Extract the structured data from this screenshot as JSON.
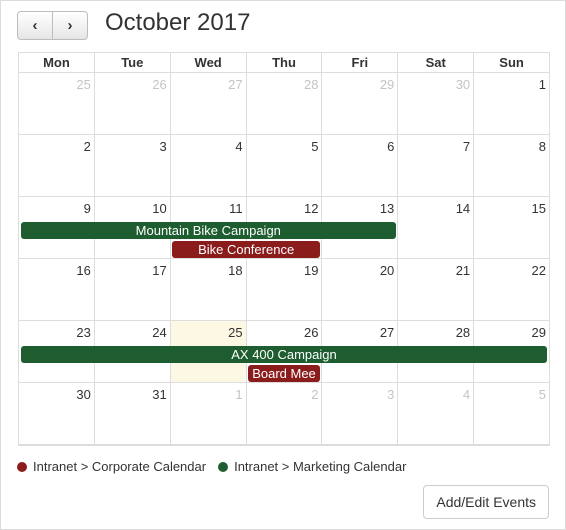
{
  "header": {
    "prev_label": "‹",
    "next_label": "›",
    "title": "October 2017"
  },
  "weekdays": [
    "Mon",
    "Tue",
    "Wed",
    "Thu",
    "Fri",
    "Sat",
    "Sun"
  ],
  "weeks": [
    [
      {
        "n": "25",
        "other": true
      },
      {
        "n": "26",
        "other": true
      },
      {
        "n": "27",
        "other": true
      },
      {
        "n": "28",
        "other": true
      },
      {
        "n": "29",
        "other": true
      },
      {
        "n": "30",
        "other": true
      },
      {
        "n": "1"
      }
    ],
    [
      {
        "n": "2"
      },
      {
        "n": "3"
      },
      {
        "n": "4"
      },
      {
        "n": "5"
      },
      {
        "n": "6"
      },
      {
        "n": "7"
      },
      {
        "n": "8"
      }
    ],
    [
      {
        "n": "9"
      },
      {
        "n": "10"
      },
      {
        "n": "11"
      },
      {
        "n": "12"
      },
      {
        "n": "13"
      },
      {
        "n": "14"
      },
      {
        "n": "15"
      }
    ],
    [
      {
        "n": "16"
      },
      {
        "n": "17"
      },
      {
        "n": "18"
      },
      {
        "n": "19"
      },
      {
        "n": "20"
      },
      {
        "n": "21"
      },
      {
        "n": "22"
      }
    ],
    [
      {
        "n": "23"
      },
      {
        "n": "24"
      },
      {
        "n": "25",
        "today": true
      },
      {
        "n": "26"
      },
      {
        "n": "27"
      },
      {
        "n": "28"
      },
      {
        "n": "29"
      }
    ],
    [
      {
        "n": "30"
      },
      {
        "n": "31"
      },
      {
        "n": "1",
        "other": true
      },
      {
        "n": "2",
        "other": true
      },
      {
        "n": "3",
        "other": true
      },
      {
        "n": "4",
        "other": true
      },
      {
        "n": "5",
        "other": true
      }
    ]
  ],
  "events": [
    {
      "title": "Mountain Bike Campaign",
      "week": 2,
      "start_col": 0,
      "span": 5,
      "row": 0,
      "calendar": "marketing"
    },
    {
      "title": "Bike Conference",
      "week": 2,
      "start_col": 2,
      "span": 2,
      "row": 1,
      "calendar": "corporate"
    },
    {
      "title": "AX 400 Campaign",
      "week": 4,
      "start_col": 0,
      "span": 7,
      "row": 0,
      "calendar": "marketing"
    },
    {
      "title": "Board Mee",
      "week": 4,
      "start_col": 3,
      "span": 1,
      "row": 1,
      "calendar": "corporate"
    }
  ],
  "calendars": {
    "corporate": {
      "label": "Intranet > Corporate Calendar",
      "color": "#8b1c1c"
    },
    "marketing": {
      "label": "Intranet > Marketing Calendar",
      "color": "#1e5d2f"
    }
  },
  "footer": {
    "add_edit_label": "Add/Edit Events"
  }
}
